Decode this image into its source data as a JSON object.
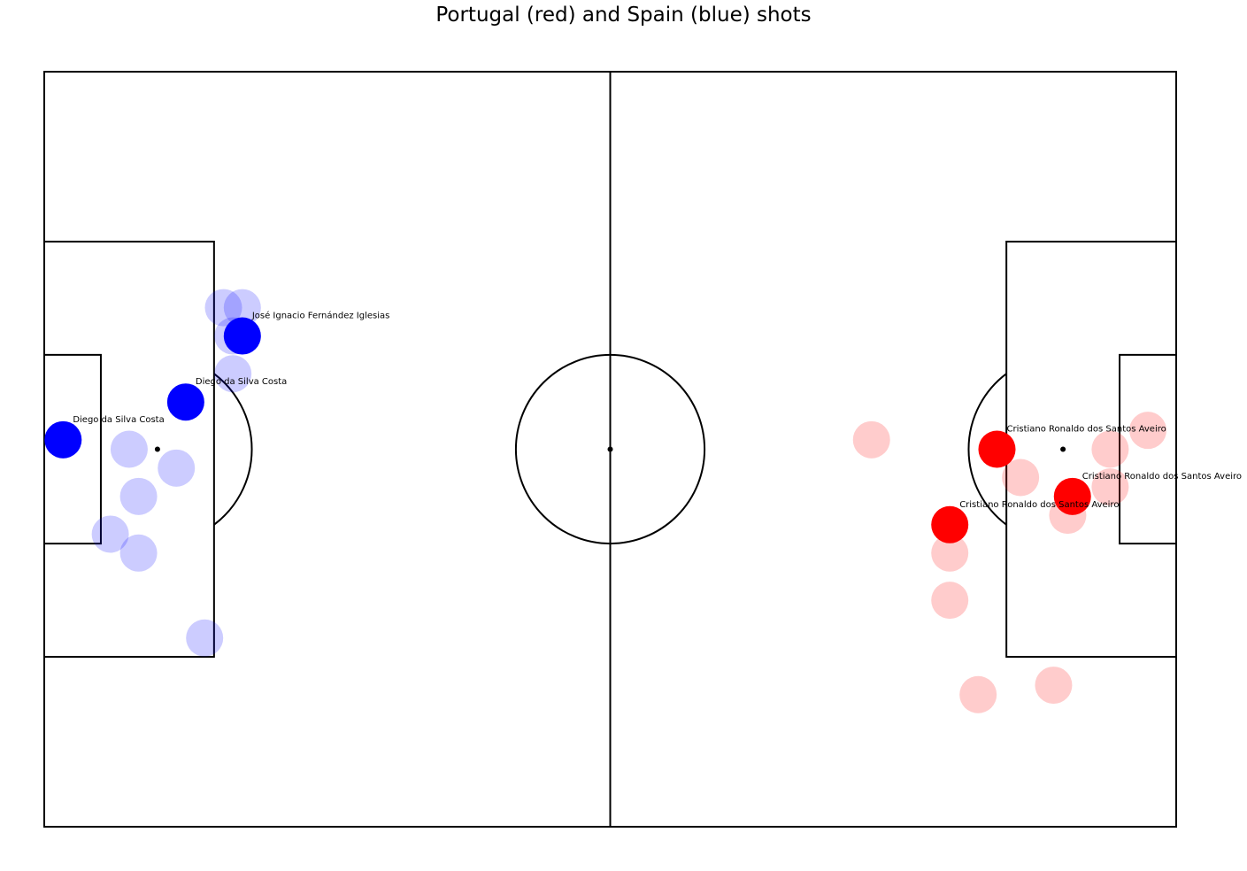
{
  "chart_data": {
    "type": "scatter",
    "title": "Portugal (red) and Spain (blue) shots",
    "xlabel": "",
    "ylabel": "",
    "xlim": [
      0,
      120
    ],
    "ylim": [
      0,
      80
    ],
    "grid": false,
    "colors": {
      "portugal": "#ff0000",
      "spain": "#0000ff"
    },
    "series": [
      {
        "name": "Portugal",
        "color": "#ff0000",
        "points": [
          {
            "x": 103.5,
            "y": 37.0,
            "goal": false,
            "label": ""
          },
          {
            "x": 108.5,
            "y": 33.0,
            "goal": false,
            "label": ""
          },
          {
            "x": 113.0,
            "y": 40.0,
            "goal": false,
            "label": ""
          },
          {
            "x": 87.7,
            "y": 41.0,
            "goal": false,
            "label": ""
          },
          {
            "x": 113.0,
            "y": 36.0,
            "goal": false,
            "label": ""
          },
          {
            "x": 96.0,
            "y": 24.0,
            "goal": false,
            "label": ""
          },
          {
            "x": 96.0,
            "y": 29.0,
            "goal": false,
            "label": ""
          },
          {
            "x": 99.0,
            "y": 14.0,
            "goal": false,
            "label": ""
          },
          {
            "x": 107.0,
            "y": 15.0,
            "goal": false,
            "label": ""
          },
          {
            "x": 117.0,
            "y": 42.0,
            "goal": false,
            "label": ""
          },
          {
            "x": 101.0,
            "y": 40.0,
            "goal": true,
            "label": "Cristiano Ronaldo dos Santos Aveiro"
          },
          {
            "x": 109.0,
            "y": 35.0,
            "goal": true,
            "label": "Cristiano Ronaldo dos Santos Aveiro"
          },
          {
            "x": 96.0,
            "y": 32.0,
            "goal": true,
            "label": "Cristiano Ronaldo dos Santos Aveiro"
          }
        ]
      },
      {
        "name": "Spain",
        "color": "#0000ff",
        "points": [
          {
            "x": 19.0,
            "y": 55.0,
            "goal": false,
            "label": ""
          },
          {
            "x": 20.0,
            "y": 52.0,
            "goal": false,
            "label": ""
          },
          {
            "x": 20.0,
            "y": 48.0,
            "goal": false,
            "label": ""
          },
          {
            "x": 9.0,
            "y": 40.0,
            "goal": false,
            "label": ""
          },
          {
            "x": 14.0,
            "y": 38.0,
            "goal": false,
            "label": ""
          },
          {
            "x": 10.0,
            "y": 35.0,
            "goal": false,
            "label": ""
          },
          {
            "x": 7.0,
            "y": 31.0,
            "goal": false,
            "label": ""
          },
          {
            "x": 10.0,
            "y": 29.0,
            "goal": false,
            "label": ""
          },
          {
            "x": 17.0,
            "y": 20.0,
            "goal": false,
            "label": ""
          },
          {
            "x": 21.0,
            "y": 55.0,
            "goal": false,
            "label": ""
          },
          {
            "x": 21.0,
            "y": 52.0,
            "goal": true,
            "label": "José Ignacio Fernández Iglesias"
          },
          {
            "x": 15.0,
            "y": 45.0,
            "goal": true,
            "label": "Diego da Silva Costa"
          },
          {
            "x": 2.0,
            "y": 41.0,
            "goal": true,
            "label": "Diego da Silva Costa"
          }
        ]
      }
    ]
  }
}
